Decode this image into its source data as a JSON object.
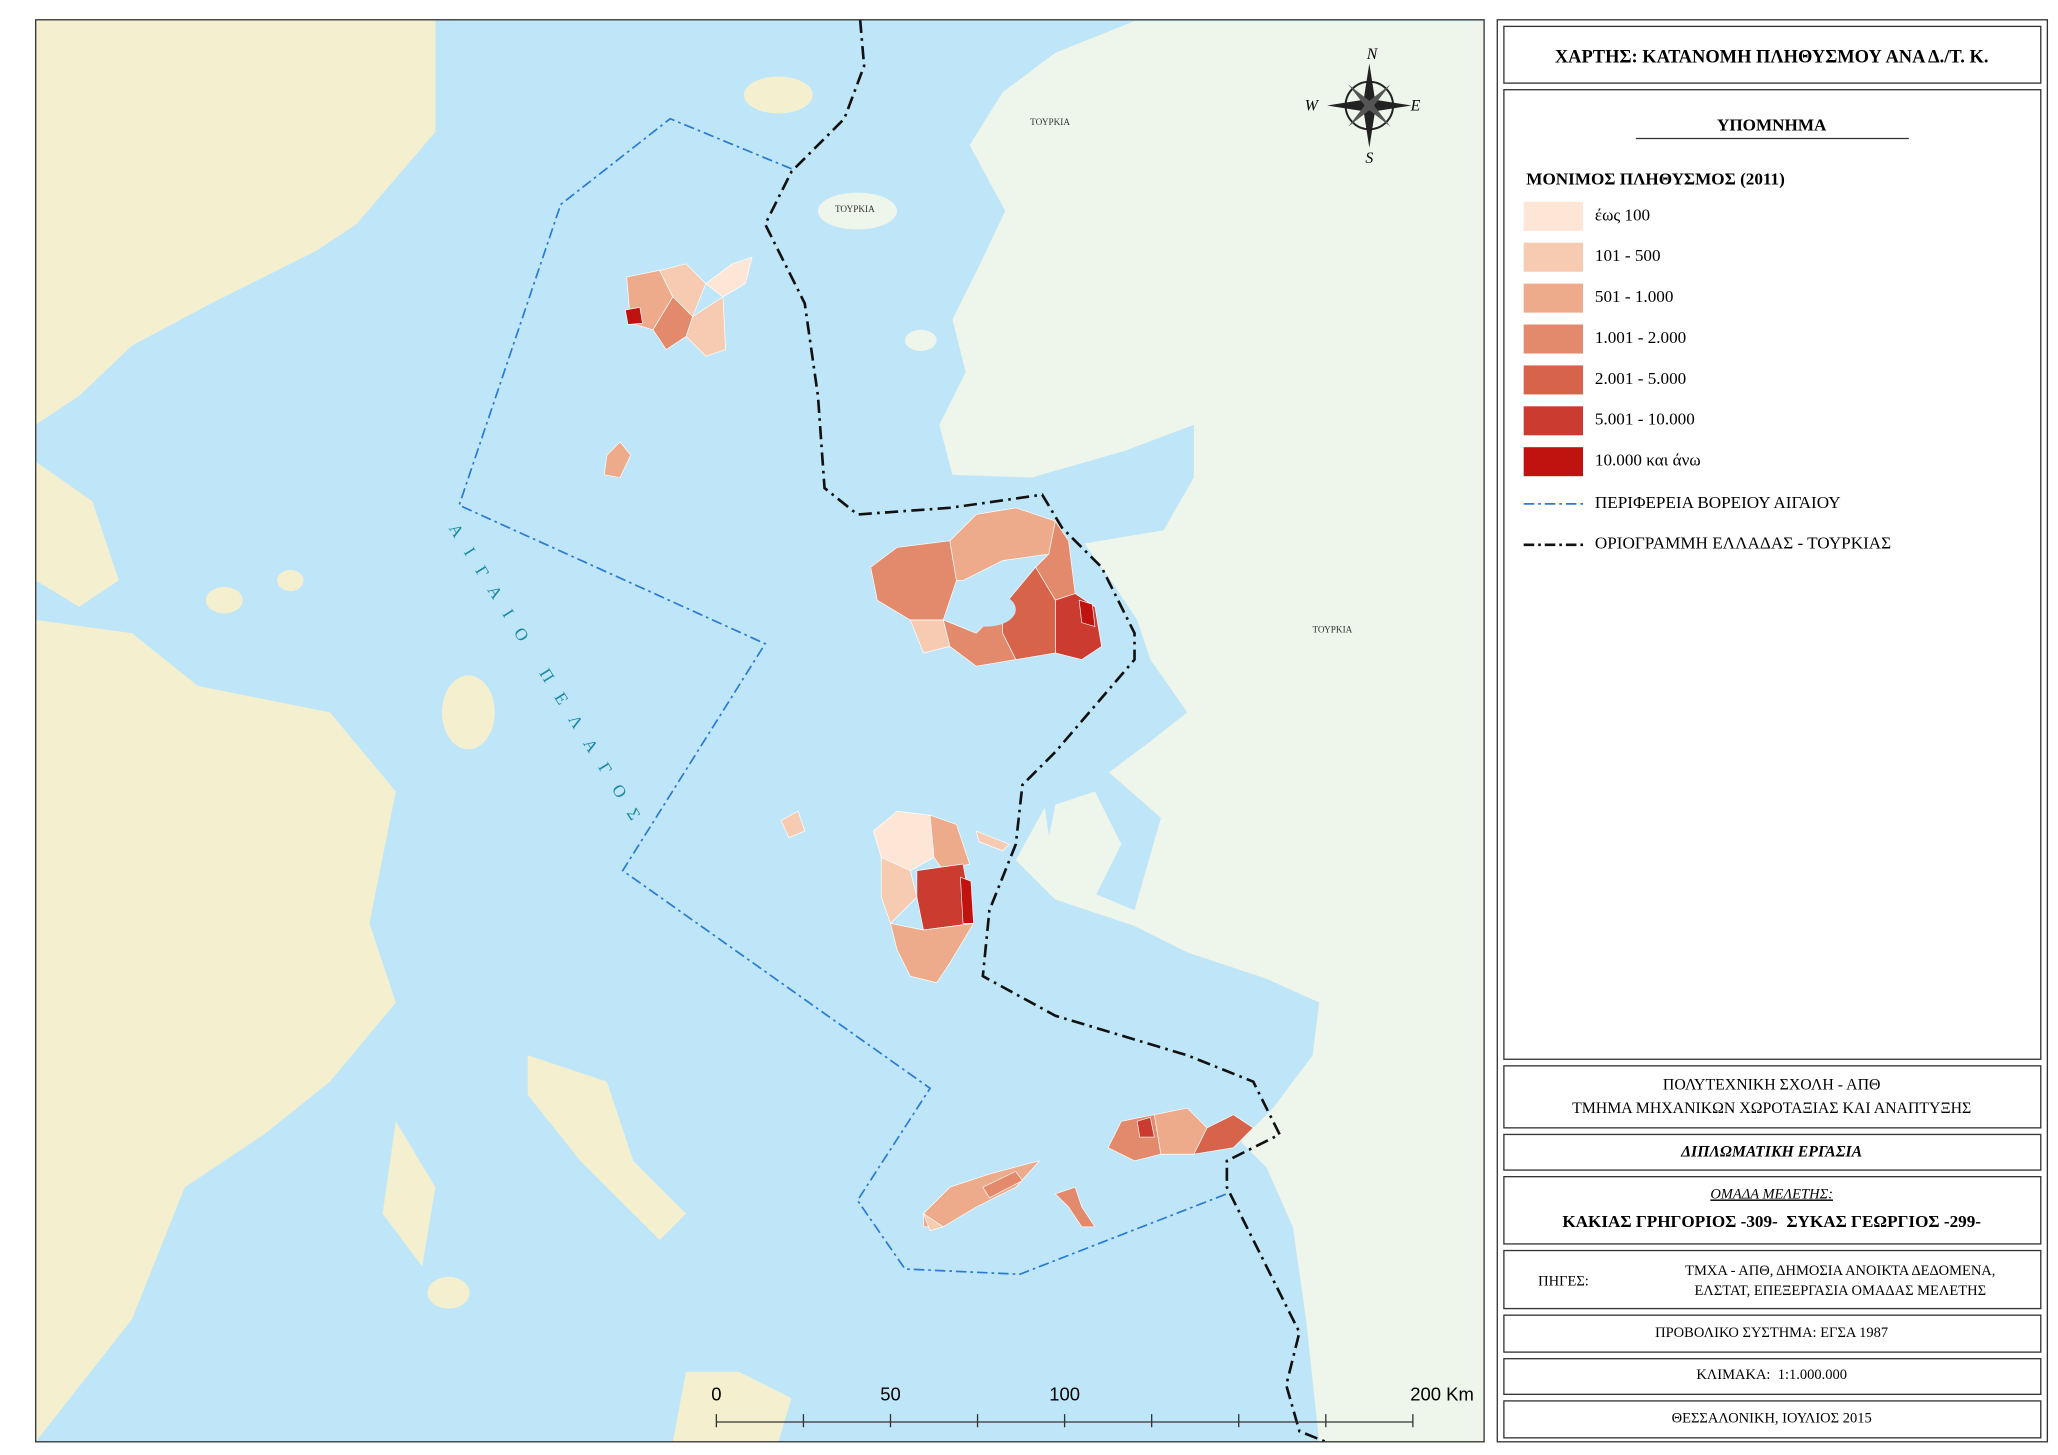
{
  "title": "ΧΑΡΤΗΣ: ΚΑΤΑΝΟΜΗ ΠΛΗΘΥΣΜΟΥ ΑΝΑ Δ./Τ. Κ.",
  "legend": {
    "heading": "ΥΠΟΜΝΗΜΑ",
    "subtitle": "ΜΟΝΙΜΟΣ ΠΛΗΘΥΣΜΟΣ (2011)",
    "classes": [
      {
        "label": "έως 100",
        "color": "#fde6d6"
      },
      {
        "label": "101 - 500",
        "color": "#f6cbb1"
      },
      {
        "label": "501 - 1.000",
        "color": "#eeab8b"
      },
      {
        "label": "1.001 - 2.000",
        "color": "#e38a6c"
      },
      {
        "label": "2.001 - 5.000",
        "color": "#d8634b"
      },
      {
        "label": "5.001 - 10.000",
        "color": "#cc3b2f"
      },
      {
        "label": "10.000 και άνω",
        "color": "#c0120f"
      }
    ],
    "lines": [
      {
        "label": "ΠΕΡΙΦΕΡΕΙΑ ΒΟΡΕΙΟΥ ΑΙΓΑΙΟΥ",
        "color": "#2a7bd4"
      },
      {
        "label": "ΟΡΙΟΓΡΑΜΜΗ ΕΛΛΑΔΑΣ - ΤΟΥΡΚΙΑΣ",
        "color": "#111111"
      }
    ]
  },
  "map": {
    "labels": [
      "ΤΟΥΡΚΙΑ",
      "ΤΟΥΡΚΙΑ",
      "ΤΟΥΡΚΙΑ"
    ],
    "sea_label": "ΑΙΓΑΙΟ ΠΕΛΑΓΟΣ",
    "compass": [
      "N",
      "E",
      "S",
      "W"
    ],
    "scale_labels": [
      "0",
      "50",
      "100",
      "200 Km"
    ]
  },
  "credits": {
    "institution": [
      "ΠΟΛΥΤΕΧΝΙΚΗ ΣΧΟΛΗ - ΑΠΘ",
      "ΤΜΗΜΑ ΜΗΧΑΝΙΚΩΝ ΧΩΡΟΤΑΞΙΑΣ ΚΑΙ ΑΝΑΠΤΥΞΗΣ"
    ],
    "thesis": "ΔΙΠΛΩΜΑΤΙΚΗ ΕΡΓΑΣΙΑ",
    "team_heading": "ΟΜΑΔΑ ΜΕΛΕΤΗΣ:",
    "team": "ΚΑΚΙΑΣ ΓΡΗΓΟΡΙΟΣ -309-  ΣΥΚΑΣ ΓΕΩΡΓΙΟΣ -299-",
    "sources_label": "ΠΗΓΕΣ:",
    "sources": [
      "ΤΜΧΑ - ΑΠΘ, ΔΗΜΟΣΙΑ ΑΝΟΙΚΤΑ ΔΕΔΟΜΕΝΑ,",
      "ΕΛΣΤΑΤ, ΕΠΕΞΕΡΓΑΣΙΑ ΟΜΑΔΑΣ ΜΕΛΕΤΗΣ"
    ],
    "projection": "ΠΡΟΒΟΛΙΚΟ ΣΥΣΤΗΜΑ: ΕΓΣΑ 1987",
    "scale": "ΚΛΙΜΑΚΑ:  1:1.000.000",
    "place_date": "ΘΕΣΣΑΛΟΝΙΚΗ, ΙΟΥΛΙΟΣ 2015"
  }
}
